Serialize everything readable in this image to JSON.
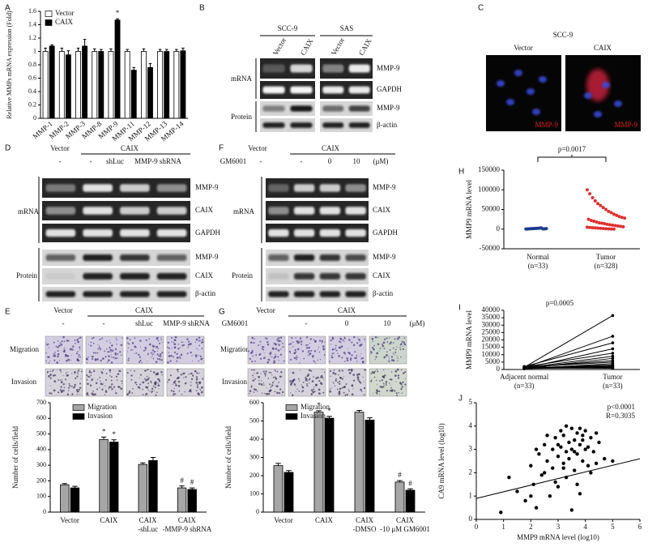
{
  "panel_labels": [
    "A",
    "B",
    "C",
    "D",
    "E",
    "F",
    "G",
    "H",
    "I",
    "J"
  ],
  "blot_B": {
    "cell_lines": [
      "SCC-9",
      "SAS"
    ],
    "lanes": [
      "Vector",
      "CAIX",
      "Vector",
      "CAIX"
    ],
    "sections": [
      "mRNA",
      "Protein"
    ],
    "rows": [
      "MMP-9",
      "GAPDH",
      "MMP-9",
      "β-actin"
    ]
  },
  "if_C": {
    "cell_line": "SCC-9",
    "lanes": [
      "Vector",
      "CAIX"
    ],
    "stain": [
      "MMP-9",
      "MMP-9"
    ]
  },
  "blot_D": {
    "header": [
      "Vector",
      "CAIX"
    ],
    "lanes": [
      "-",
      "-",
      "shLuc",
      "MMP-9 shRNA"
    ],
    "sections": [
      "mRNA",
      "Protein"
    ],
    "rows": [
      "MMP-9",
      "CAIX",
      "GAPDH",
      "MMP-9",
      "CAIX",
      "β-actin"
    ]
  },
  "blot_F": {
    "header": [
      "Vector",
      "CAIX"
    ],
    "treatment": "GM6001",
    "lanes": [
      "-",
      "-",
      "0",
      "10"
    ],
    "unit": "(μM)",
    "sections": [
      "mRNA",
      "Protein"
    ],
    "rows": [
      "MMP-9",
      "CAIX",
      "GAPDH",
      "MMP-9",
      "CAIX",
      "β-actin"
    ]
  },
  "assay_E": {
    "header": [
      "Vector",
      "CAIX"
    ],
    "lanes": [
      "-",
      "-",
      "shLuc",
      "MMP-9 shRNA"
    ],
    "rows": [
      "Migration",
      "Invasion"
    ]
  },
  "assay_G": {
    "header": [
      "Vector",
      "CAIX"
    ],
    "treatment": "GM6001",
    "lanes": [
      "-",
      "0",
      "10"
    ],
    "unit": "(μM)",
    "rows": [
      "Migration",
      "Invasion"
    ]
  },
  "chart_data": [
    {
      "type": "bar",
      "ylabel": "Relative MMPs mRNA expression (Fold)",
      "categories": [
        "MMP-1",
        "MMP-2",
        "MMP-3",
        "MMP-8",
        "MMP-9",
        "MMP-11",
        "MMP-12",
        "MMP-13",
        "MMP-14"
      ],
      "series": [
        {
          "name": "Vector",
          "color": "#ffffff",
          "values": [
            1.0,
            1.0,
            1.0,
            1.0,
            1.0,
            1.0,
            1.0,
            1.0,
            1.0
          ],
          "errors": [
            0.05,
            0.05,
            0.05,
            0.04,
            0.04,
            0.03,
            0.04,
            0.03,
            0.03
          ],
          "markers": [
            null,
            null,
            null,
            null,
            null,
            null,
            null,
            null,
            null
          ]
        },
        {
          "name": "CAIX",
          "color": "#000000",
          "values": [
            1.08,
            0.95,
            1.08,
            1.0,
            1.47,
            0.72,
            0.76,
            1.0,
            1.01
          ],
          "errors": [
            0.02,
            0.06,
            0.1,
            0.03,
            0.02,
            0.04,
            0.06,
            0.03,
            0.04
          ],
          "markers": [
            null,
            null,
            null,
            null,
            "*",
            null,
            null,
            null,
            null
          ]
        }
      ],
      "ylim": [
        0,
        1.6
      ],
      "yticks": [
        0,
        0.2,
        0.4,
        0.6,
        0.8,
        1,
        1.2,
        1.4,
        1.6
      ],
      "legend": "upper left"
    },
    {
      "type": "bar",
      "ylabel": "Number of cells/field",
      "categories": [
        [
          "Vector"
        ],
        [
          "CAIX"
        ],
        [
          "CAIX",
          "-shLuc"
        ],
        [
          "CAIX",
          "-MMP-9 shRNA"
        ]
      ],
      "series": [
        {
          "name": "Migration",
          "color": "#a6a6a6",
          "values": [
            175,
            465,
            305,
            155
          ],
          "errors": [
            8,
            15,
            10,
            12
          ],
          "markers": [
            null,
            "*",
            null,
            "#"
          ]
        },
        {
          "name": "Invasion",
          "color": "#000000",
          "values": [
            155,
            448,
            330,
            145
          ],
          "errors": [
            10,
            15,
            20,
            10
          ],
          "markers": [
            null,
            "*",
            null,
            "#"
          ]
        }
      ],
      "ylim": [
        0,
        700
      ],
      "yticks": [
        0,
        100,
        200,
        300,
        400,
        500,
        600,
        700
      ],
      "legend": "upper left"
    },
    {
      "type": "bar",
      "ylabel": "Number of cells/field",
      "categories": [
        [
          "Vector"
        ],
        [
          "CAIX"
        ],
        [
          "CAIX",
          "-DMSO"
        ],
        [
          "CAIX",
          "-10 μM GM6001"
        ]
      ],
      "series": [
        {
          "name": "Migration",
          "color": "#a6a6a6",
          "values": [
            255,
            548,
            548,
            165
          ],
          "errors": [
            12,
            8,
            10,
            8
          ],
          "markers": [
            null,
            "*",
            null,
            "#"
          ]
        },
        {
          "name": "Invasion",
          "color": "#000000",
          "values": [
            218,
            515,
            505,
            120
          ],
          "errors": [
            10,
            10,
            12,
            8
          ],
          "markers": [
            null,
            "*",
            null,
            "#"
          ]
        }
      ],
      "ylim": [
        0,
        600
      ],
      "yticks": [
        0,
        100,
        200,
        300,
        400,
        500,
        600
      ],
      "legend": "upper left"
    },
    {
      "type": "strip",
      "ylabel": "MMP9 mRNA level",
      "annotation": "p=0.0017",
      "categories": [
        [
          "Normal",
          "(n=33)"
        ],
        [
          "Tumor",
          "(n=328)"
        ]
      ],
      "colors": [
        "#1a3a8f",
        "#e03030"
      ],
      "values": [
        [
          200,
          500,
          800,
          1000,
          1200,
          1500,
          1800,
          2000,
          2500,
          3000,
          600,
          900,
          1300
        ],
        [
          100000,
          90000,
          80000,
          72000,
          65000,
          60000,
          55000,
          50000,
          45000,
          42000,
          38000,
          35000,
          32000,
          30000,
          28000,
          25000,
          22000,
          20000,
          18000,
          16000,
          15000,
          14000,
          12000,
          11000,
          10000,
          9000,
          8000,
          7000,
          6000,
          5000,
          4000,
          3500,
          3000,
          2500,
          2000,
          1500,
          1000,
          500,
          300,
          100
        ]
      ],
      "ylim": [
        -50000,
        150000
      ],
      "yticks": [
        -50000,
        0,
        50000,
        100000,
        150000
      ]
    },
    {
      "type": "paired",
      "ylabel": "MMP9 mRNA level",
      "annotation": "p=0.0005",
      "categories": [
        [
          "Adjacent normal",
          "(n=33)"
        ],
        [
          "Tumor",
          "(n=33)"
        ]
      ],
      "color": "#000000",
      "values": [
        [
          1500,
          1200,
          2000,
          900,
          1800,
          1000,
          700,
          1300,
          1600,
          500,
          1100,
          800,
          1400,
          600,
          1900,
          1000
        ],
        [
          36500,
          22500,
          18000,
          14000,
          11000,
          9000,
          7500,
          6000,
          5000,
          4000,
          3000,
          2500,
          2000,
          1500,
          1000,
          800
        ]
      ],
      "ylim": [
        0,
        40000
      ],
      "yticks": [
        0,
        5000,
        10000,
        15000,
        20000,
        25000,
        30000,
        35000,
        40000
      ]
    },
    {
      "type": "scatter",
      "xlabel": "MMP9 mRNA level (log10)",
      "ylabel": "CA9 mRNA level (log10)",
      "annotations": [
        "p<0.0001",
        "R=0.3035"
      ],
      "color": "#000000",
      "x": [
        0.9,
        1.5,
        1.8,
        2.0,
        2.1,
        2.2,
        2.3,
        2.4,
        2.5,
        2.5,
        2.6,
        2.7,
        2.8,
        2.8,
        2.9,
        3.0,
        3.0,
        3.1,
        3.1,
        3.2,
        3.2,
        3.3,
        3.3,
        3.4,
        3.4,
        3.5,
        3.5,
        3.6,
        3.6,
        3.7,
        3.7,
        3.8,
        3.8,
        3.9,
        3.9,
        4.0,
        4.0,
        4.1,
        4.2,
        4.3,
        4.4,
        4.5,
        4.7,
        5.0,
        2.2,
        2.6,
        3.0,
        3.3,
        3.6,
        3.9,
        4.2,
        2.9,
        3.5,
        3.8,
        4.1,
        1.2,
        2.0,
        3.2,
        3.7,
        4.4
      ],
      "y": [
        0.3,
        1.2,
        0.8,
        2.3,
        1.5,
        0.5,
        2.8,
        1.9,
        3.2,
        2.0,
        2.5,
        1.0,
        3.0,
        2.2,
        3.5,
        2.7,
        1.4,
        3.8,
        3.1,
        2.4,
        3.6,
        2.9,
        1.8,
        3.3,
        2.6,
        3.9,
        3.0,
        2.1,
        3.4,
        3.7,
        2.8,
        3.2,
        1.1,
        3.6,
        2.5,
        3.0,
        3.8,
        2.3,
        3.5,
        2.9,
        2.4,
        3.3,
        2.6,
        2.5,
        3.0,
        3.6,
        3.2,
        4.0,
        2.9,
        3.4,
        2.0,
        1.6,
        0.4,
        3.9,
        3.1,
        1.8,
        1.0,
        2.2,
        1.5,
        3.7
      ],
      "fit": {
        "x": [
          0,
          6
        ],
        "y": [
          0.9,
          2.6
        ]
      },
      "xlim": [
        0,
        6
      ],
      "xticks": [
        0,
        1,
        2,
        3,
        4,
        5,
        6
      ],
      "ylim": [
        0,
        5
      ],
      "yticks": [
        0,
        1,
        2,
        3,
        4,
        5
      ]
    }
  ]
}
